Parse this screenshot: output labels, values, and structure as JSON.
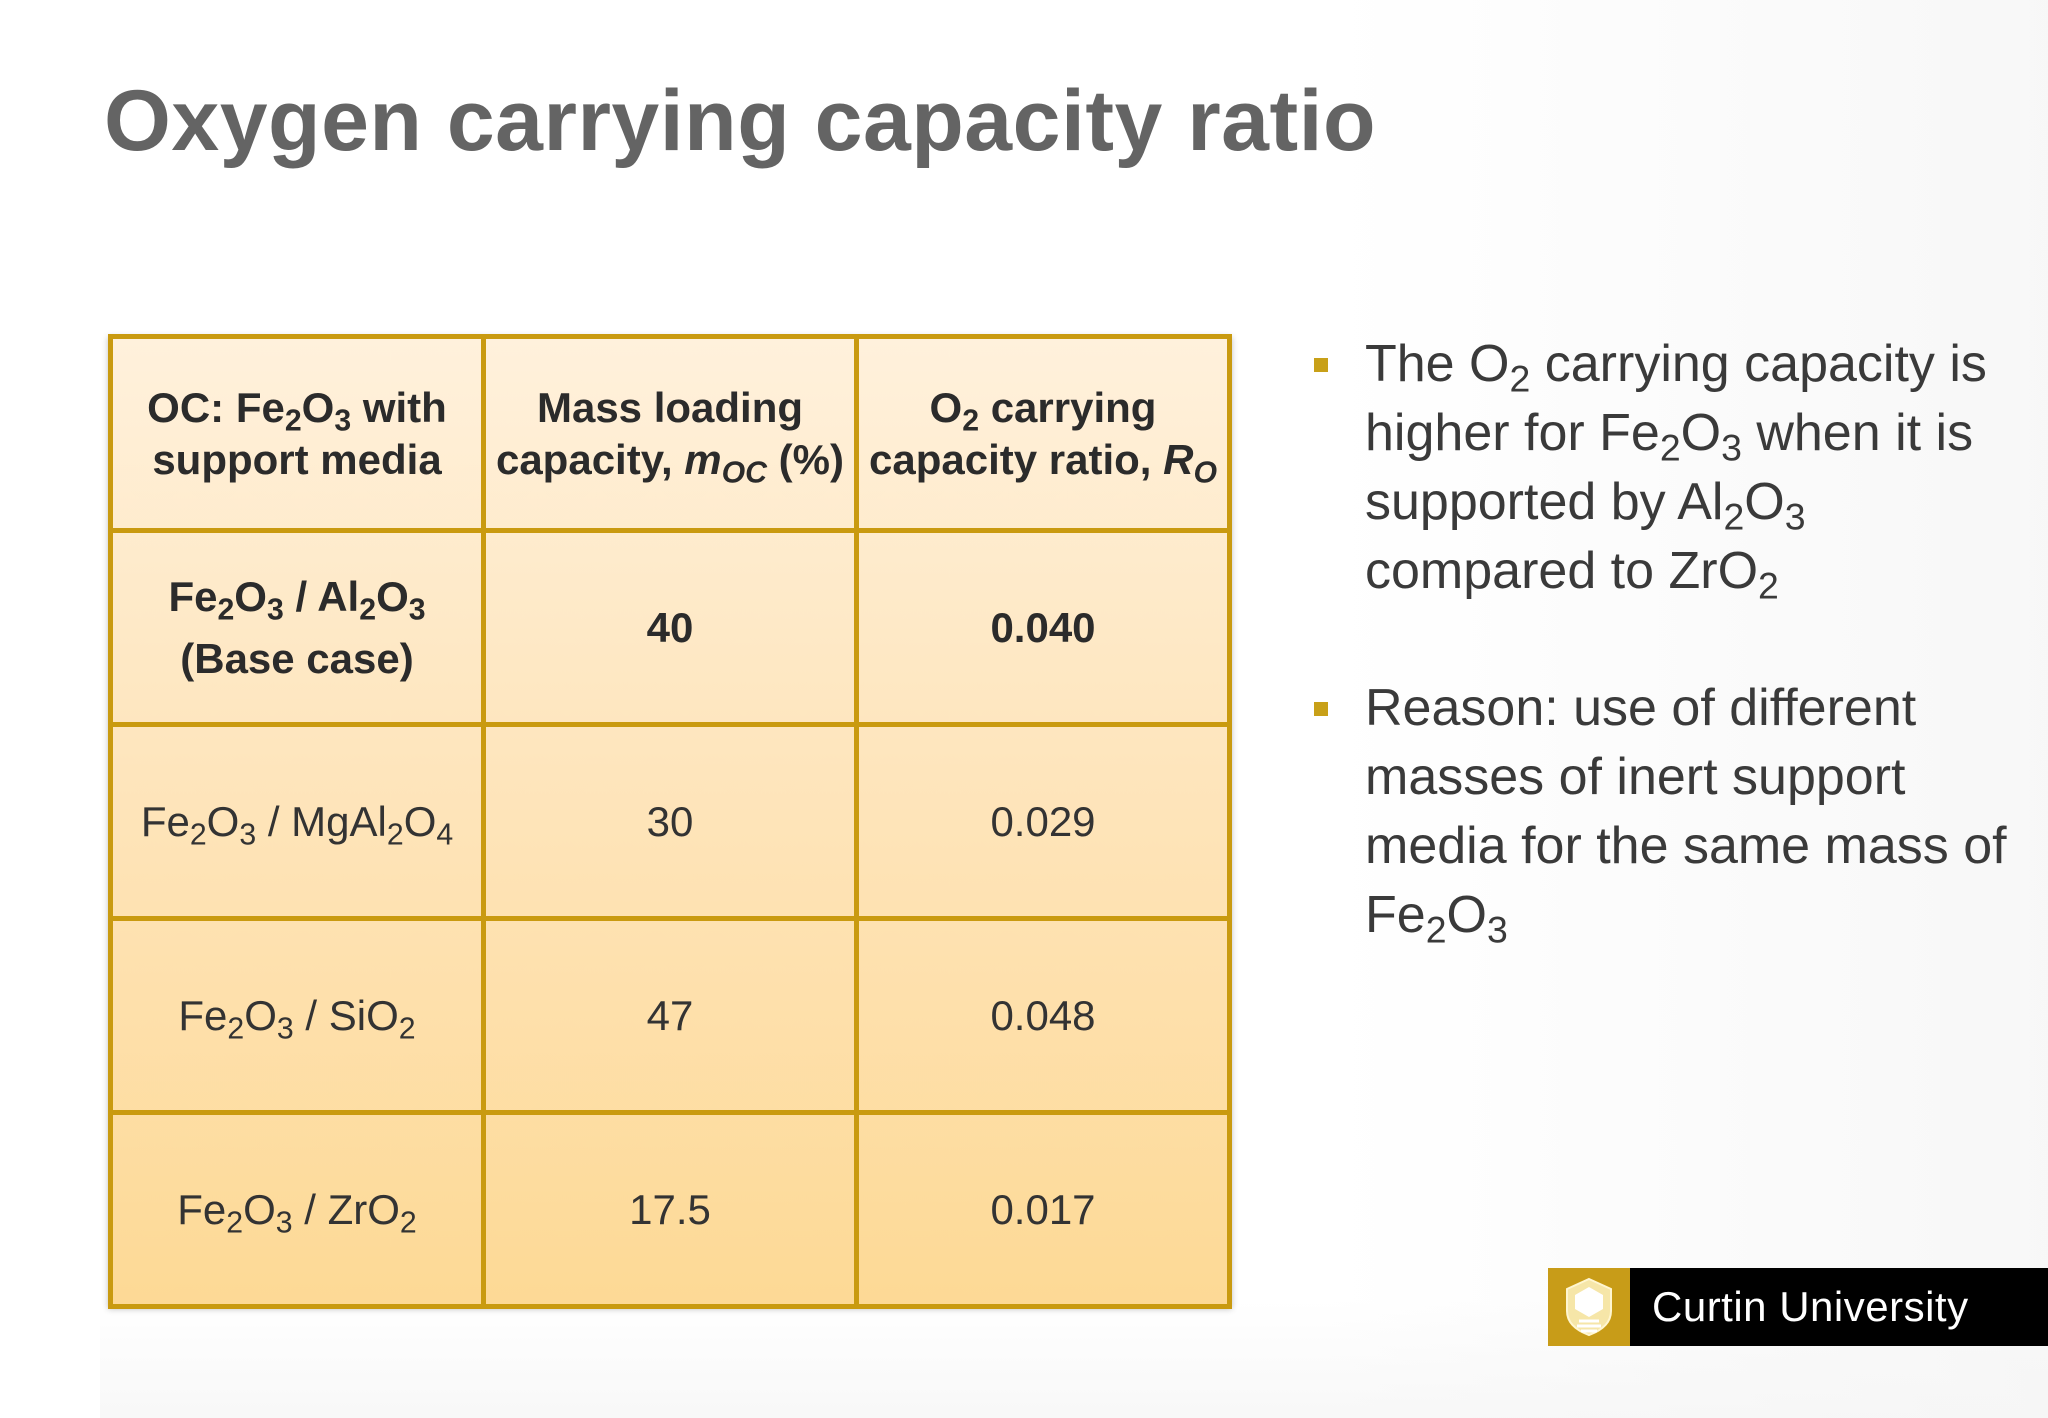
{
  "slide": {
    "title": "Oxygen carrying capacity ratio"
  },
  "table": {
    "header": {
      "col1": {
        "line1_a": "OC: Fe",
        "line1_sub1": "2",
        "line1_b": "O",
        "line1_sub2": "3",
        "line1_c": " with",
        "line2": "support media"
      },
      "col2": {
        "line1": "Mass loading",
        "line2_a": "capacity, ",
        "line2_var": "m",
        "line2_sub": "OC",
        "line2_b": " (%)"
      },
      "col3": {
        "line1_a": "O",
        "line1_sub": "2",
        "line1_b": " carrying",
        "line2_a": "capacity ratio, ",
        "line2_var": "R",
        "line2_sub": "O"
      }
    },
    "rows": [
      {
        "oc": {
          "a": "Fe",
          "s1": "2",
          "b": "O",
          "s2": "3",
          "c": " / Al",
          "s3": "2",
          "d": "O",
          "s4": "3"
        },
        "note": "(Base case)",
        "mass_loading": "40",
        "ratio": "0.040"
      },
      {
        "oc": {
          "a": "Fe",
          "s1": "2",
          "b": "O",
          "s2": "3",
          "c": " / MgAl",
          "s3": "2",
          "d": "O",
          "s4": "4"
        },
        "mass_loading": "30",
        "ratio": "0.029"
      },
      {
        "oc": {
          "a": "Fe",
          "s1": "2",
          "b": "O",
          "s2": "3",
          "c": " / SiO",
          "s3": "2"
        },
        "mass_loading": "47",
        "ratio": "0.048"
      },
      {
        "oc": {
          "a": "Fe",
          "s1": "2",
          "b": "O",
          "s2": "3",
          "c": " / ZrO",
          "s3": "2"
        },
        "mass_loading": "17.5",
        "ratio": "0.017"
      }
    ]
  },
  "bullets": {
    "b1": {
      "t1": "The O",
      "s1": "2",
      "t2": " carrying capacity is higher for Fe",
      "s2": "2",
      "t3": "O",
      "s3": "3",
      "t4": " when it is supported by Al",
      "s4": "2",
      "t5": "O",
      "s5": "3",
      "t6": " compared to ZrO",
      "s6": "2"
    },
    "b2": {
      "t1": "Reason: use of different masses of inert support media for the same mass of Fe",
      "s1": "2",
      "t2": "O",
      "s2": "3"
    }
  },
  "logo": {
    "text": "Curtin University"
  },
  "colors": {
    "title": "#646464",
    "table_border": "#c99a10",
    "bullet_marker": "#c8a018",
    "logo_gold": "#c89c18"
  }
}
